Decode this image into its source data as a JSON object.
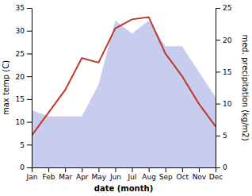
{
  "chart_data": {
    "type": "line",
    "categories": [
      "Jan",
      "Feb",
      "Mar",
      "Apr",
      "May",
      "Jun",
      "Jul",
      "Aug",
      "Sep",
      "Oct",
      "Nov",
      "Dec"
    ],
    "xlabel": "date (month)",
    "ylabel": "max temp (C)",
    "y2label": "med. precipitation (kg/m2)",
    "series": [
      {
        "type": "area",
        "axis": "y2",
        "color": "#b0b8e8",
        "values": [
          9,
          8,
          8,
          8,
          13,
          23,
          21,
          23,
          19,
          19,
          15,
          11
        ]
      },
      {
        "type": "line",
        "color": "#c0392b",
        "values": [
          7,
          12,
          17,
          24,
          23,
          30.5,
          32.5,
          33,
          25,
          20,
          14,
          9
        ]
      }
    ],
    "ylim": [
      0,
      35
    ],
    "yticks": [
      0,
      5,
      10,
      15,
      20,
      25,
      30,
      35
    ],
    "y2lim": [
      0,
      25
    ],
    "y2ticks": [
      0,
      5,
      10,
      15,
      20,
      25
    ],
    "grid": false
  }
}
